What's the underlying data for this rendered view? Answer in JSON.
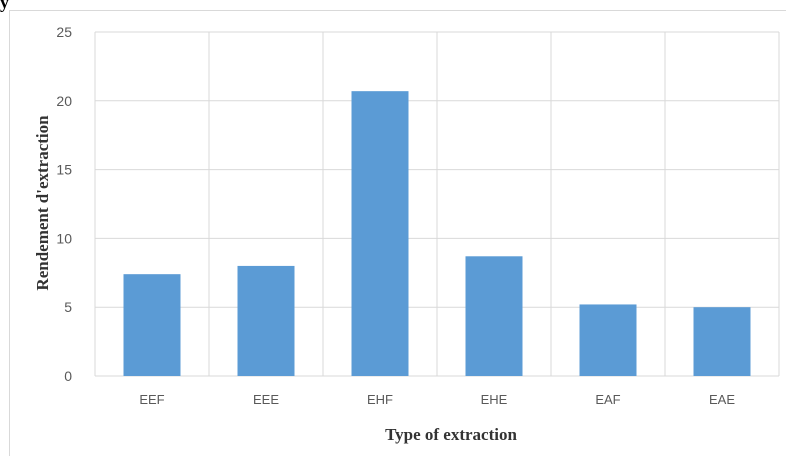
{
  "corner_text": "y",
  "chart_data": {
    "type": "bar",
    "categories": [
      "EEF",
      "EEE",
      "EHF",
      "EHE",
      "EAF",
      "EAE"
    ],
    "values": [
      7.4,
      8.0,
      20.7,
      8.7,
      5.2,
      5.0
    ],
    "title": "",
    "xlabel": "Type of extraction",
    "ylabel": "Rendement d'extraction",
    "ylim": [
      0,
      25
    ],
    "yticks": [
      0,
      5,
      10,
      15,
      20,
      25
    ],
    "grid": true,
    "legend": "none",
    "bar_color": "#5b9bd5",
    "grid_color": "#d9d9d9"
  }
}
